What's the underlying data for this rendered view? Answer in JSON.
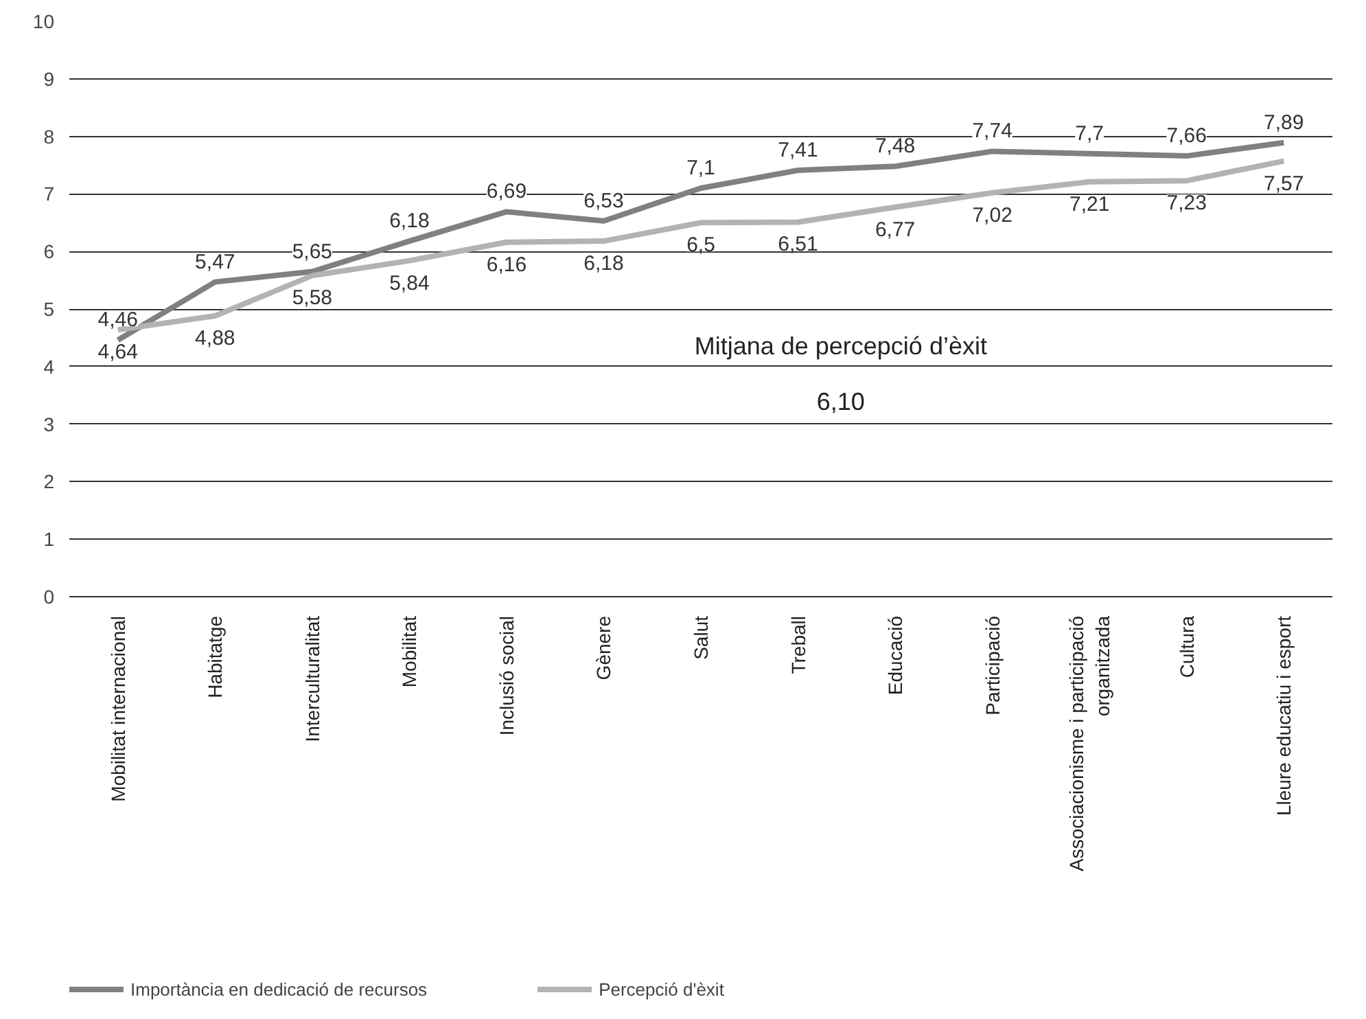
{
  "chart_data": {
    "type": "line",
    "categories": [
      "Mobilitat internacional",
      "Habitatge",
      "Interculturalitat",
      "Mobilitat",
      "Inclusió social",
      "Gènere",
      "Salut",
      "Treball",
      "Educació",
      "Participació",
      "Associacionisme i participació organitzada",
      "Cultura",
      "Lleure educatiu i esport"
    ],
    "series": [
      {
        "name": "Importància en dedicació de recursos",
        "color": "#808080",
        "values": [
          4.46,
          5.47,
          5.65,
          6.18,
          6.69,
          6.53,
          7.1,
          7.41,
          7.48,
          7.74,
          7.7,
          7.66,
          7.89
        ],
        "value_labels": [
          "4,46",
          "5,47",
          "5,65",
          "6,18",
          "6,69",
          "6,53",
          "7,1",
          "7,41",
          "7,48",
          "7,74",
          "7,7",
          "7,66",
          "7,89"
        ]
      },
      {
        "name": "Percepció d'èxit",
        "color": "#b3b3b3",
        "values": [
          4.64,
          4.88,
          5.58,
          5.84,
          6.16,
          6.18,
          6.5,
          6.51,
          6.77,
          7.02,
          7.21,
          7.23,
          7.57
        ],
        "value_labels": [
          "4,64",
          "4,88",
          "5,58",
          "5,84",
          "6,16",
          "6,18",
          "6,5",
          "6,51",
          "6,77",
          "7,02",
          "7,21",
          "7,23",
          "7,57"
        ]
      }
    ],
    "annotations": [
      "Mitjana de percepció d’èxit",
      "6,10"
    ],
    "ylim": [
      0,
      10
    ],
    "yticks": [
      0,
      1,
      2,
      3,
      4,
      5,
      6,
      7,
      8,
      9,
      10
    ],
    "grid": "y",
    "legend": "bottom left",
    "marker": "none",
    "line_style": "solid"
  }
}
